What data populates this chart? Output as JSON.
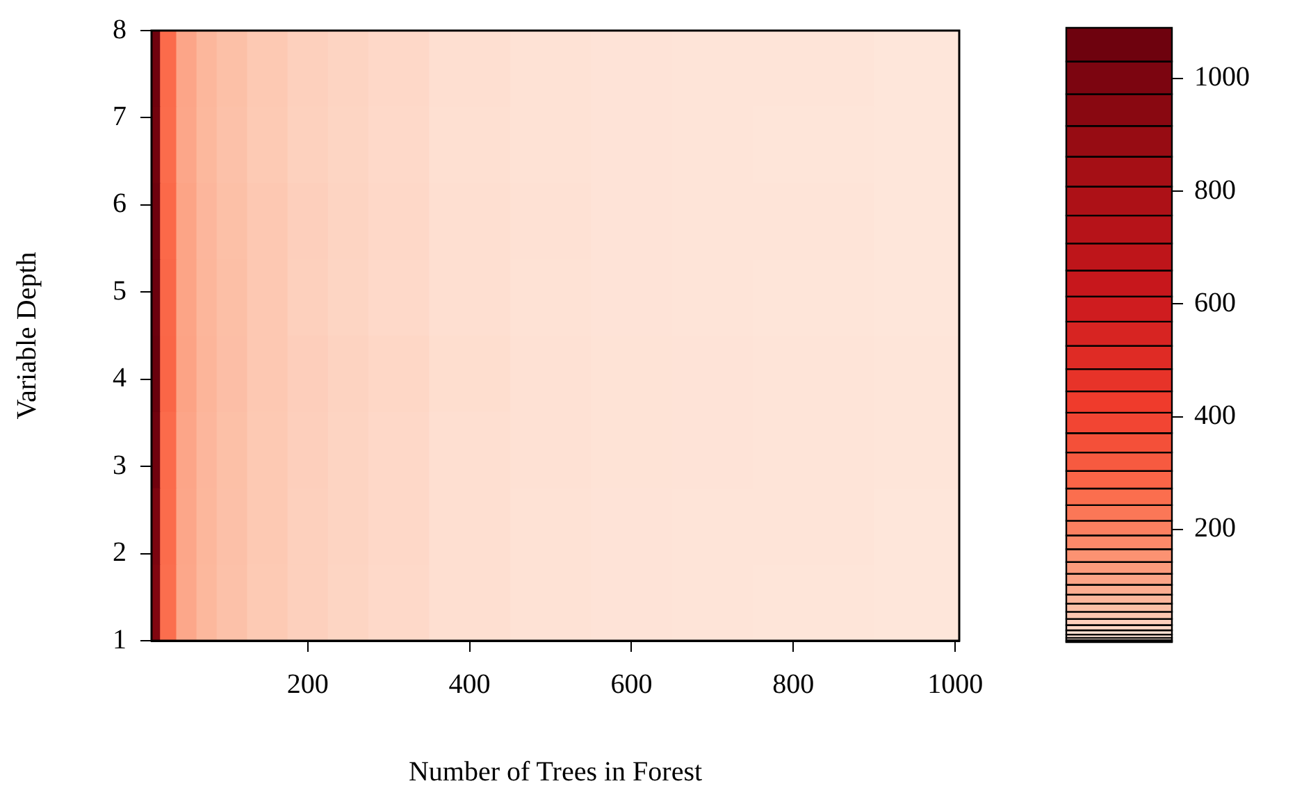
{
  "chart_data": {
    "type": "heatmap",
    "xlabel": "Number of Trees in Forest",
    "ylabel": "Variable Depth",
    "x": [
      10,
      25,
      50,
      75,
      100,
      150,
      200,
      250,
      300,
      400,
      500,
      600,
      700,
      800,
      1000
    ],
    "cells": [
      [
        1050,
        270,
        110,
        75,
        60,
        45,
        35,
        30,
        25,
        18,
        14,
        12,
        11,
        11,
        9
      ],
      [
        1040,
        265,
        108,
        74,
        58,
        44,
        34,
        29,
        24,
        17,
        14,
        12,
        11,
        10,
        9
      ],
      [
        1060,
        275,
        112,
        76,
        60,
        46,
        36,
        30,
        25,
        18,
        15,
        12,
        11,
        11,
        9
      ],
      [
        1070,
        280,
        112,
        77,
        61,
        46,
        35,
        29,
        24,
        18,
        14,
        12,
        11,
        10,
        9
      ],
      [
        1080,
        285,
        114,
        78,
        62,
        47,
        37,
        31,
        26,
        19,
        15,
        13,
        12,
        11,
        10
      ],
      [
        1050,
        270,
        110,
        76,
        60,
        45,
        36,
        30,
        25,
        18,
        15,
        13,
        12,
        11,
        10
      ],
      [
        1000,
        265,
        108,
        75,
        59,
        45,
        35,
        30,
        25,
        18,
        14,
        12,
        11,
        11,
        9
      ],
      [
        980,
        260,
        106,
        74,
        58,
        44,
        35,
        29,
        24,
        18,
        14,
        12,
        11,
        10,
        9
      ]
    ],
    "xlim": [
      7,
      1005
    ],
    "xticks": [
      200,
      400,
      600,
      800,
      1000
    ],
    "ylim": [
      1,
      8
    ],
    "yticks": [
      1,
      2,
      3,
      4,
      5,
      6,
      7,
      8
    ],
    "clim": [
      0,
      1090
    ],
    "cticks": [
      200,
      400,
      600,
      800,
      1000
    ]
  }
}
